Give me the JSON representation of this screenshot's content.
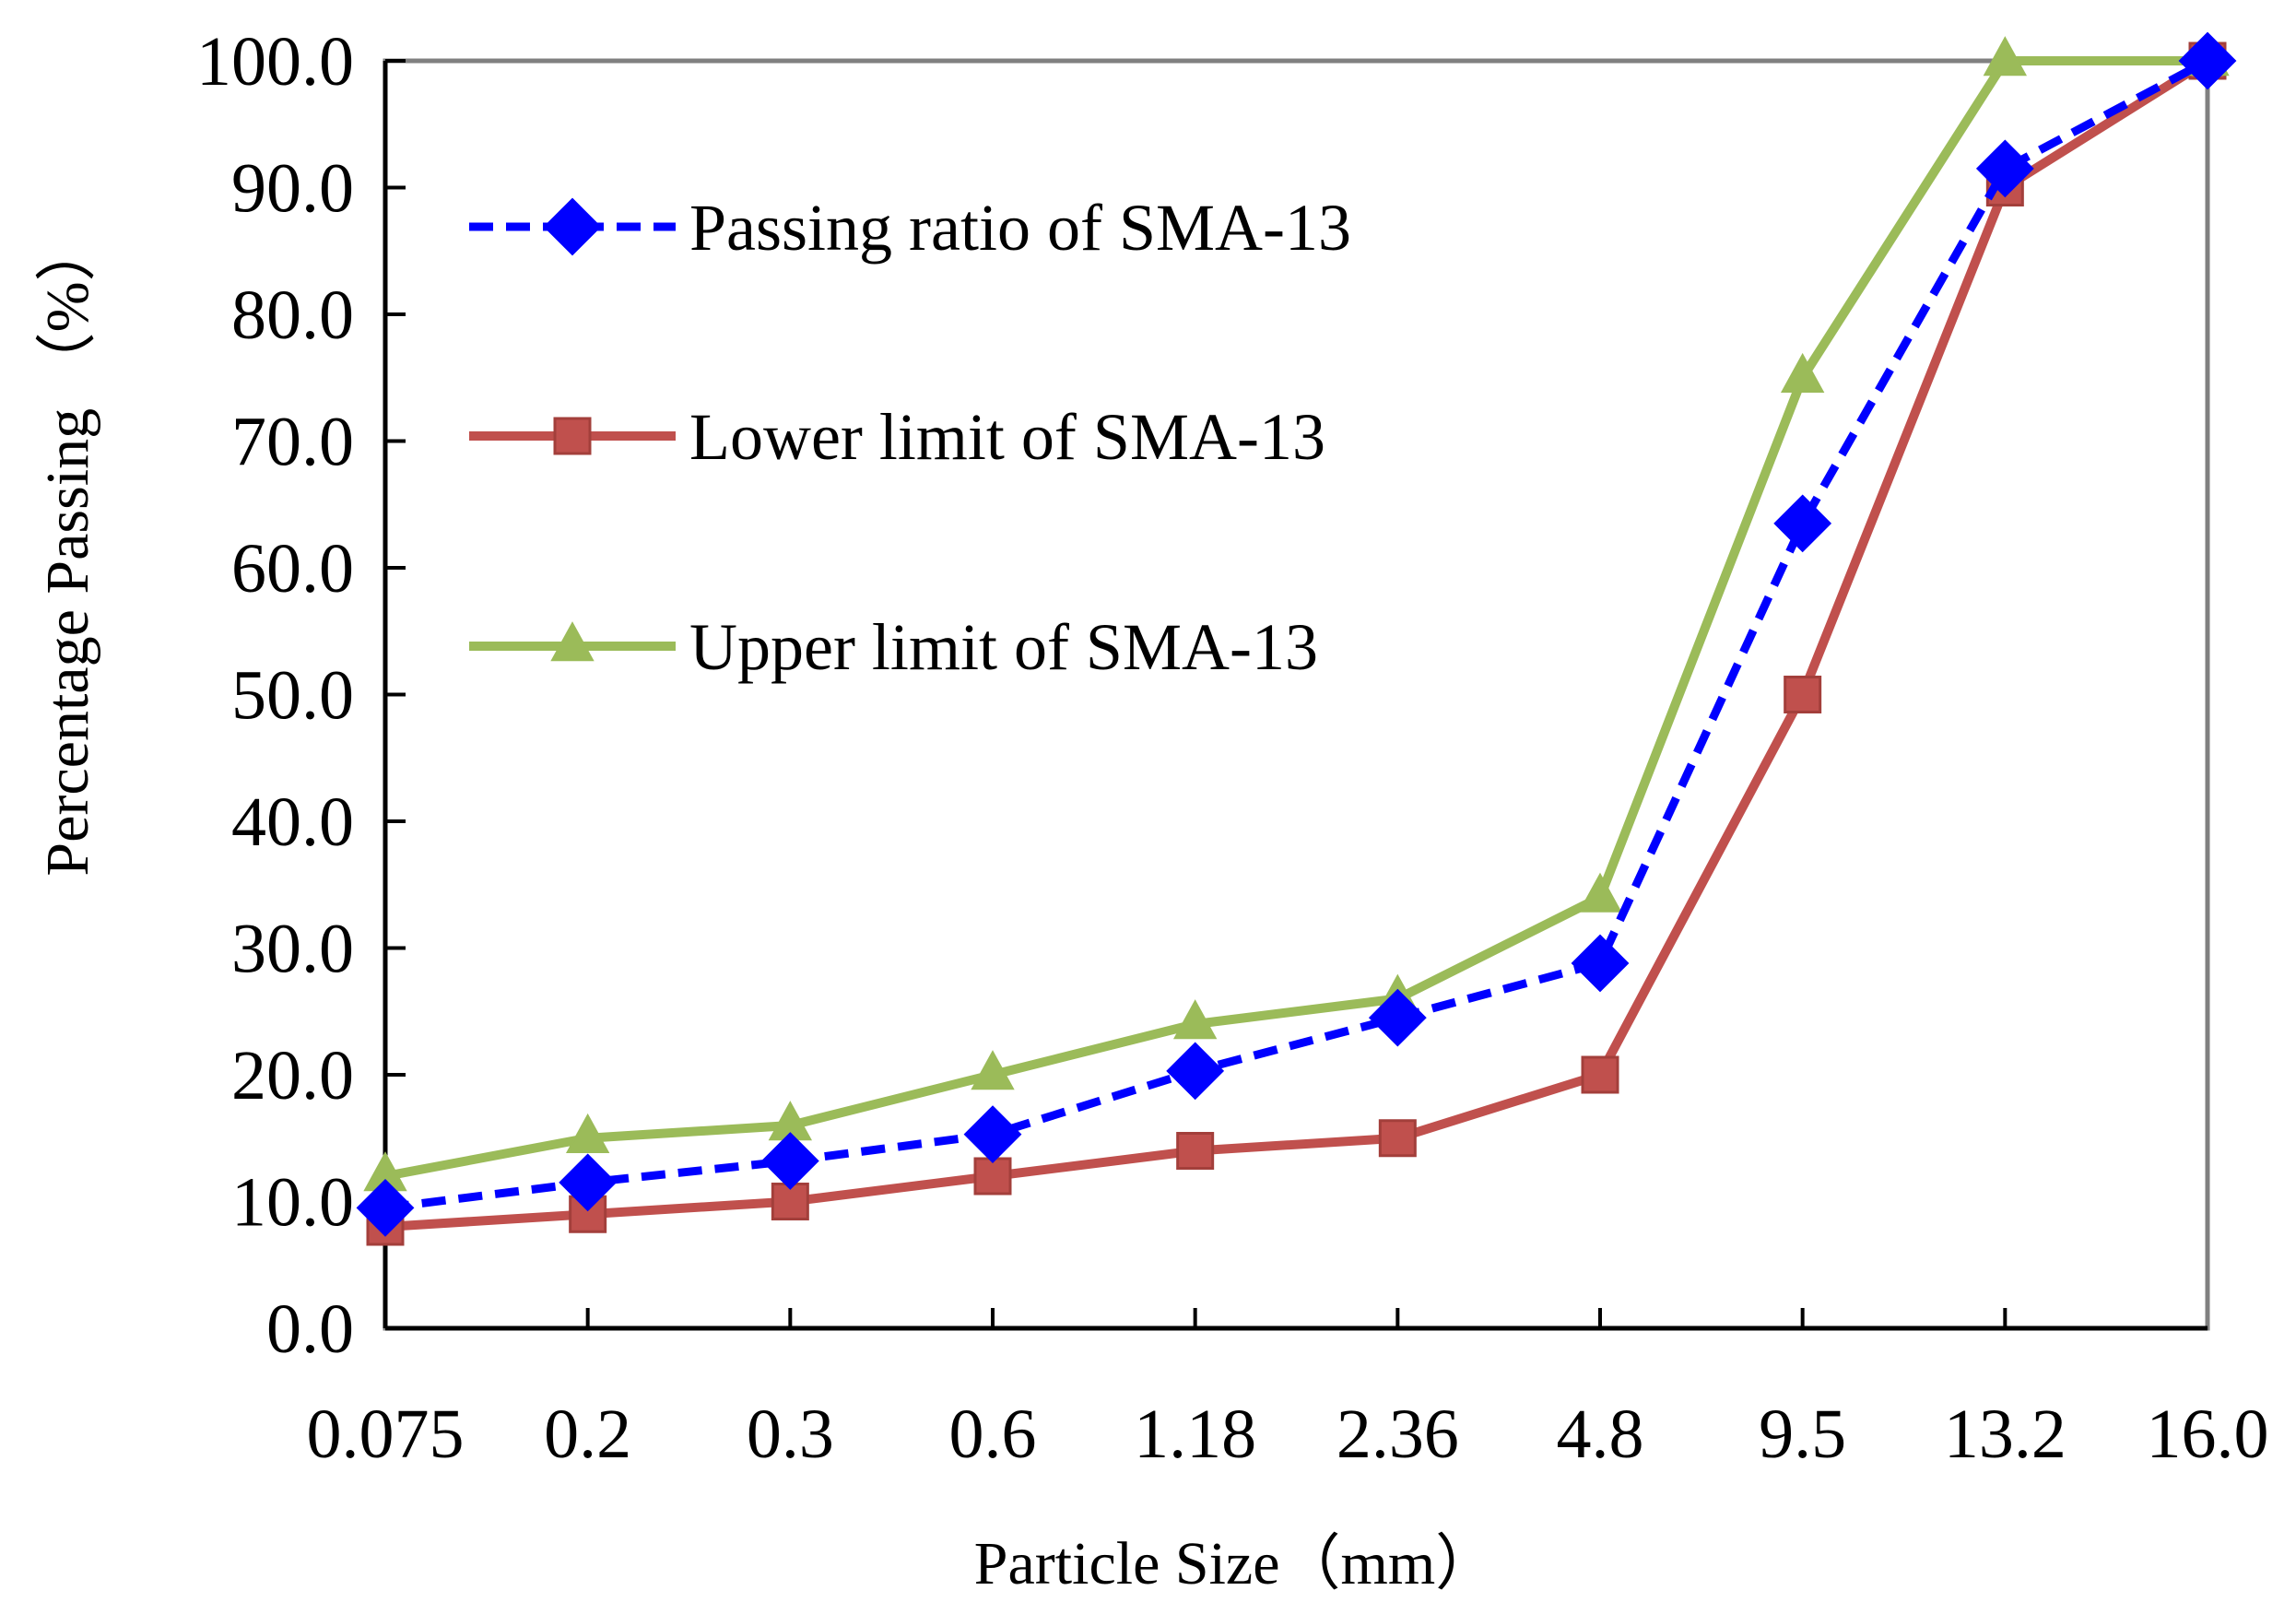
{
  "chart_data": {
    "type": "line",
    "title": "",
    "xlabel": "Particle Size（mm）",
    "ylabel": "Percentage Passing （%）",
    "categories": [
      "0.075",
      "0.2",
      "0.3",
      "0.6",
      "1.18",
      "2.36",
      "4.8",
      "9.5",
      "13.2",
      "16.0"
    ],
    "ylim": [
      0,
      100
    ],
    "yticks": [
      "0.0",
      "10.0",
      "20.0",
      "30.0",
      "40.0",
      "50.0",
      "60.0",
      "70.0",
      "80.0",
      "90.0",
      "100.0"
    ],
    "grid": false,
    "legend_position": "top-left",
    "series": [
      {
        "name": "Passing ratio of SMA-13",
        "color": "#0000ff",
        "marker": "diamond",
        "line_style": "dashed",
        "values": [
          9.5,
          11.5,
          13.2,
          15.3,
          20.3,
          24.5,
          28.8,
          63.5,
          91.5,
          100.0
        ]
      },
      {
        "name": "Lower limit of SMA-13",
        "color": "#c0504d",
        "marker": "square",
        "line_style": "solid",
        "values": [
          8.0,
          9.0,
          10.0,
          12.0,
          14.0,
          15.0,
          20.0,
          50.0,
          90.0,
          100.0
        ]
      },
      {
        "name": "Upper limit of SMA-13",
        "color": "#9bbb59",
        "marker": "triangle",
        "line_style": "solid",
        "values": [
          12.0,
          15.0,
          16.0,
          20.0,
          24.0,
          26.0,
          34.0,
          75.0,
          100.0,
          100.0
        ]
      }
    ]
  }
}
